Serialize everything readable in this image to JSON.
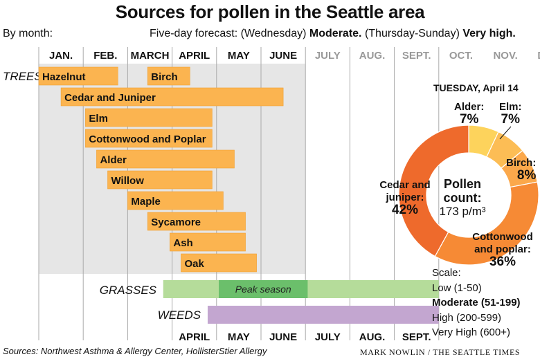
{
  "title": "Sources for pollen in the Seattle area",
  "subtitle_left": "By month:",
  "forecast": {
    "prefix": "Five-day forecast: (Wednesday)",
    "level1": "Moderate.",
    "middle": "(Thursday-Sunday)",
    "level2": "Very high."
  },
  "colors": {
    "bar": "#fbb450",
    "bar_border": "#f0a030",
    "grass": "#b5dc9a",
    "grass_peak": "#6bbf6b",
    "weeds": "#c3a6d0",
    "shade": "#e6e6e6",
    "gridline": "#aaaaaa",
    "faded_month": "#999999"
  },
  "chart_data": [
    {
      "type": "gantt",
      "top_axis_months": [
        "JAN.",
        "FEB.",
        "MARCH",
        "APRIL",
        "MAY",
        "JUNE",
        "JULY",
        "AUG.",
        "SEPT.",
        "OCT.",
        "NOV.",
        "DEC."
      ],
      "faded_months": [
        "JULY",
        "AUG.",
        "SEPT.",
        "OCT.",
        "NOV.",
        "DEC."
      ],
      "bottom_axis_months": [
        "APRIL",
        "MAY",
        "JUNE",
        "JULY",
        "AUG.",
        "SEPT."
      ],
      "categories": [
        {
          "label": "TREES",
          "bars": [
            {
              "name": "Hazelnut",
              "start": 0.0,
              "end": 1.78
            },
            {
              "name": "Birch",
              "start": 2.45,
              "end": 3.4
            },
            {
              "name": "Cedar and Juniper",
              "start": 0.5,
              "end": 5.5
            },
            {
              "name": "Elm",
              "start": 1.05,
              "end": 3.9
            },
            {
              "name": "Cottonwood and Poplar",
              "start": 1.05,
              "end": 3.9
            },
            {
              "name": "Alder",
              "start": 1.3,
              "end": 4.4
            },
            {
              "name": "Willow",
              "start": 1.55,
              "end": 3.9
            },
            {
              "name": "Maple",
              "start": 2.0,
              "end": 4.15
            },
            {
              "name": "Sycamore",
              "start": 2.45,
              "end": 4.65
            },
            {
              "name": "Ash",
              "start": 2.95,
              "end": 4.65
            },
            {
              "name": "Oak",
              "start": 3.2,
              "end": 4.9
            }
          ]
        },
        {
          "label": "GRASSES",
          "bars": [
            {
              "name": "",
              "start": 2.8,
              "end": 9.0
            },
            {
              "name": "Peak season",
              "start": 4.05,
              "end": 6.05,
              "peak": true
            }
          ]
        },
        {
          "label": "WEEDS",
          "bars": [
            {
              "name": "",
              "start": 3.8,
              "end": 9.0
            }
          ]
        }
      ]
    },
    {
      "type": "pie",
      "title": "TUESDAY, April 14",
      "center_text": {
        "line1": "Pollen",
        "line2": "count:",
        "line3": "173 p/m³"
      },
      "slices": [
        {
          "name": "Alder:",
          "value": 7,
          "label": "7%",
          "color": "#fdd35c"
        },
        {
          "name": "Elm:",
          "value": 7,
          "label": "7%",
          "color": "#fcbd55"
        },
        {
          "name": "Birch:",
          "value": 8,
          "label": "8%",
          "color": "#fba84b"
        },
        {
          "name": "Cottonwood and poplar:",
          "value": 36,
          "label": "36%",
          "color": "#f68a35"
        },
        {
          "name": "Cedar and juniper:",
          "value": 42,
          "label": "42%",
          "color": "#ee6a2c"
        }
      ]
    }
  ],
  "scale": {
    "heading": "Scale:",
    "low": "Low (1-50)",
    "moderate": "Moderate (51-199)",
    "high": "High (200-599)",
    "very_high": "Very High (600+)"
  },
  "sources": "Sources: Northwest Asthma & Allergy Center, HollisterStier Allergy",
  "credit": "MARK NOWLIN / THE SEATTLE TIMES"
}
